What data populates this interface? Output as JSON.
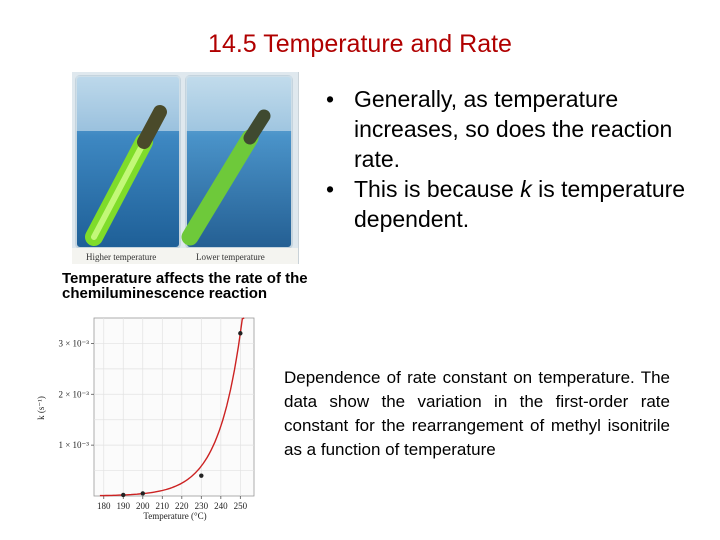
{
  "slide": {
    "title": "14.5   Temperature and Rate",
    "bullets": [
      {
        "text": "Generally, as temperature increases, so does the reaction rate."
      },
      {
        "prefix": "This is because ",
        "italic": "k",
        "suffix": " is temperature dependent."
      }
    ],
    "bullet_symbol": "•",
    "photo": {
      "left_label": "Higher temperature",
      "right_label": "Lower temperature"
    },
    "photo_caption": "Temperature affects the rate of the chemiluminescence reaction",
    "chart_caption": "Dependence of rate constant on temperature. The data show the variation in the first-order rate constant for the rearrangement of methyl isonitrile as a function of temperature"
  },
  "colors": {
    "title": "#b00000",
    "curve": "#cc2222",
    "water": "#2f7fb8",
    "glowstick": "#9be23a"
  },
  "chart_data": {
    "type": "line",
    "title": "",
    "xlabel": "Temperature (°C)",
    "ylabel": "k (s⁻¹)",
    "xlim": [
      175,
      257
    ],
    "ylim": [
      0,
      0.0035
    ],
    "x_ticks": [
      180,
      190,
      200,
      210,
      220,
      230,
      240,
      250
    ],
    "y_ticks": [
      {
        "value": 0.001,
        "label": "1 × 10⁻³"
      },
      {
        "value": 0.002,
        "label": "2 × 10⁻³"
      },
      {
        "value": 0.003,
        "label": "3 × 10⁻³"
      }
    ],
    "grid": true,
    "series": [
      {
        "points": [
          {
            "x": 190,
            "y": 2e-05
          },
          {
            "x": 200,
            "y": 5e-05
          },
          {
            "x": 230,
            "y": 0.0004
          },
          {
            "x": 250,
            "y": 0.0032
          }
        ]
      }
    ]
  }
}
